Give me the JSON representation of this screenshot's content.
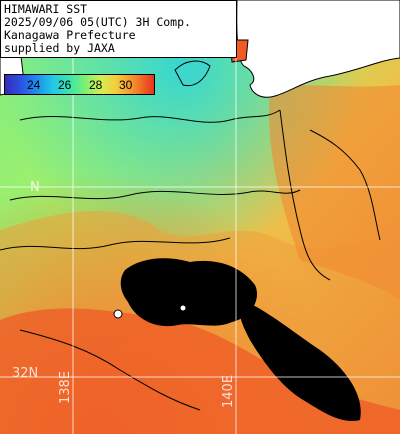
{
  "title": {
    "line1": "HIMAWARI SST",
    "line2": "2025/09/06 05(UTC) 3H Comp.",
    "line3": "Kanagawa Prefecture",
    "line4": "supplied by JAXA"
  },
  "legend": {
    "labels": [
      "24",
      "26",
      "28",
      "30"
    ],
    "colors": [
      "#3a2ab8",
      "#2b4fe0",
      "#1f86ef",
      "#22c8e6",
      "#3fe7a8",
      "#7ff070",
      "#d2ee55",
      "#f3cf3c",
      "#f3902c",
      "#e8341c"
    ]
  },
  "grid_labels": {
    "lat_south": "32N",
    "lat_north": "N",
    "lon_west": "138E",
    "lon_east": "140E"
  },
  "colors": {
    "land": "#ffffff",
    "cloud": "#000000",
    "contour": "#000000"
  }
}
